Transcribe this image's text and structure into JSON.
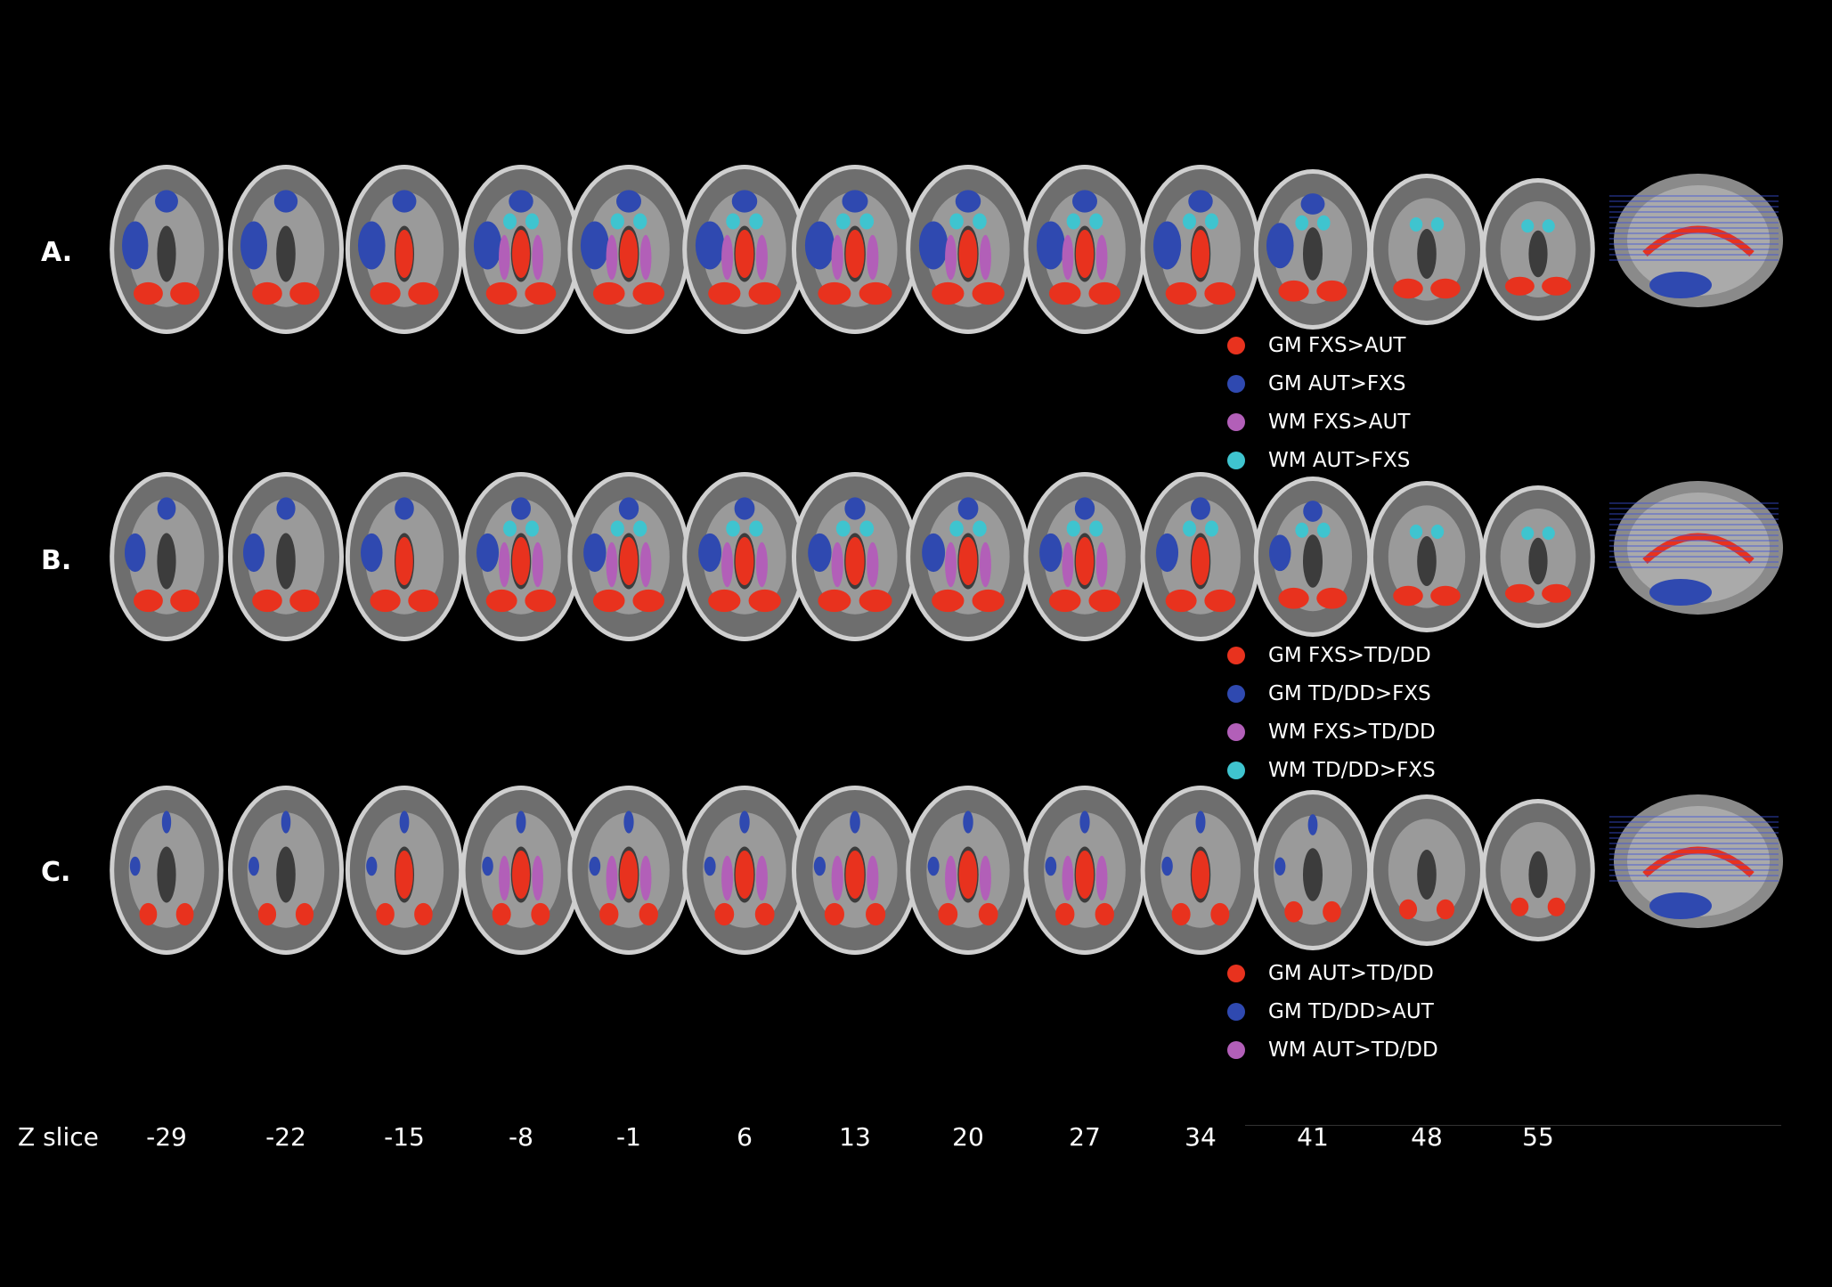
{
  "rows": [
    {
      "label": "A.",
      "legend": [
        {
          "text": "GM FXS>AUT",
          "color": "#e8321e"
        },
        {
          "text": "GM AUT>FXS",
          "color": "#2f49b0"
        },
        {
          "text": "WM FXS>AUT",
          "color": "#b25fb8"
        },
        {
          "text": "WM AUT>FXS",
          "color": "#3fc4cf"
        }
      ]
    },
    {
      "label": "B.",
      "legend": [
        {
          "text": "GM FXS>TD/DD",
          "color": "#e8321e"
        },
        {
          "text": "GM TD/DD>FXS",
          "color": "#2f49b0"
        },
        {
          "text": "WM FXS>TD/DD",
          "color": "#b25fb8"
        },
        {
          "text": "WM TD/DD>FXS",
          "color": "#3fc4cf"
        }
      ]
    },
    {
      "label": "C.",
      "legend": [
        {
          "text": "GM AUT>TD/DD",
          "color": "#e8321e"
        },
        {
          "text": "GM TD/DD>AUT",
          "color": "#2f49b0"
        },
        {
          "text": "WM AUT>TD/DD",
          "color": "#b25fb8"
        }
      ]
    }
  ],
  "z_axis": {
    "title": "Z slice",
    "slices": [
      "-29",
      "-22",
      "-15",
      "-8",
      "-1",
      "6",
      "13",
      "20",
      "27",
      "34",
      "41",
      "48",
      "55"
    ]
  },
  "colors": {
    "background": "#000000",
    "gm_positive": "#e8321e",
    "gm_negative": "#2f49b0",
    "wm_positive": "#b25fb8",
    "wm_negative": "#3fc4cf"
  }
}
